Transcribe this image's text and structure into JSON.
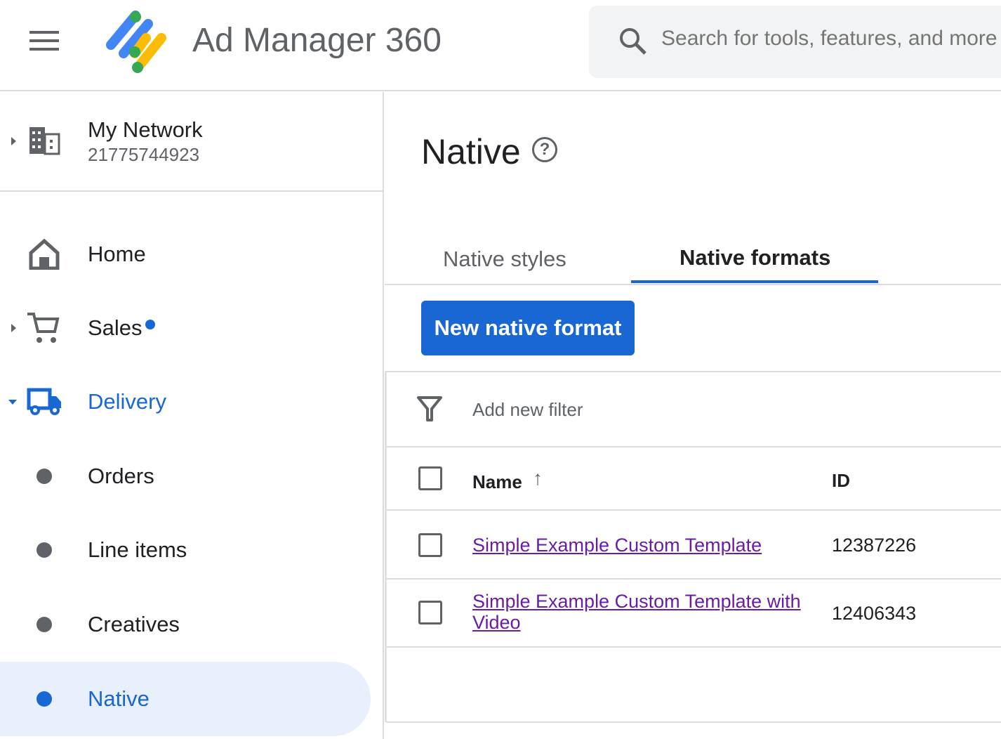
{
  "header": {
    "app_title": "Ad Manager 360",
    "search_placeholder": "Search for tools, features, and more"
  },
  "network": {
    "name": "My Network",
    "id": "21775744923"
  },
  "sidebar": {
    "items": [
      {
        "label": "Home",
        "icon": "home-icon"
      },
      {
        "label": "Sales",
        "icon": "cart-icon",
        "badge": true
      },
      {
        "label": "Delivery",
        "icon": "truck-icon",
        "expanded": true
      },
      {
        "label": "Orders"
      },
      {
        "label": "Line items"
      },
      {
        "label": "Creatives"
      },
      {
        "label": "Native",
        "active": true
      }
    ]
  },
  "main": {
    "title": "Native",
    "help_glyph": "?",
    "tabs": [
      {
        "label": "Native styles"
      },
      {
        "label": "Native formats",
        "selected": true
      }
    ],
    "new_button": "New native format",
    "filter_placeholder": "Add new filter",
    "table": {
      "columns": {
        "name": "Name",
        "sort_glyph": "↑",
        "id": "ID"
      },
      "rows": [
        {
          "name": "Simple Example Custom Template",
          "id": "12387226"
        },
        {
          "name": "Simple Example Custom Template with Video",
          "id": "12406343"
        }
      ]
    }
  },
  "colors": {
    "accent": "#1967d2",
    "link": "#681da8",
    "active_bg": "#e8f0fe"
  }
}
